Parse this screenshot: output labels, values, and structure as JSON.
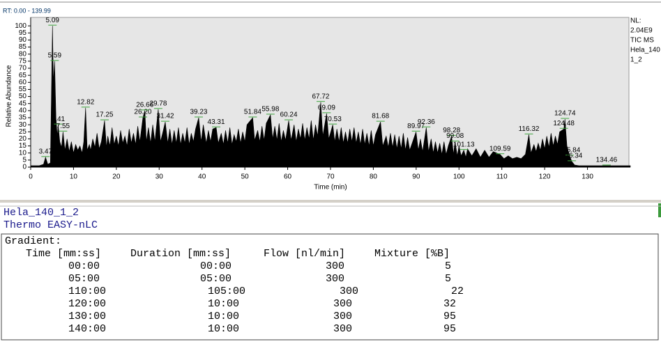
{
  "chart_data": {
    "type": "area",
    "header": "RT: 0.00 - 139.99",
    "xlabel": "Time (min)",
    "ylabel": "Relative Abundance",
    "side_info": [
      "NL:",
      "2.04E9",
      "TIC  MS",
      "Hela_140",
      "1_2"
    ],
    "xlim": [
      0,
      140
    ],
    "ylim": [
      0,
      105
    ],
    "xticks": [
      0,
      10,
      20,
      30,
      40,
      50,
      60,
      70,
      80,
      90,
      100,
      110,
      120,
      130
    ],
    "yticks": [
      0,
      5,
      10,
      15,
      20,
      25,
      30,
      35,
      40,
      45,
      50,
      55,
      60,
      65,
      70,
      75,
      80,
      85,
      90,
      95,
      100
    ],
    "series": [
      {
        "color": "#000000",
        "x": [
          0,
          1,
          2,
          3,
          3.47,
          4,
          4.6,
          5.09,
          5.3,
          5.59,
          5.9,
          6.2,
          6.41,
          6.8,
          7.2,
          7.55,
          8,
          8.5,
          9,
          9.5,
          10,
          10.5,
          11,
          11.5,
          12,
          12.4,
          12.82,
          13.2,
          13.7,
          14,
          14.5,
          15,
          15.5,
          16,
          16.5,
          17.25,
          17.7,
          18,
          18.5,
          19,
          19.5,
          20,
          20.5,
          21,
          21.5,
          22,
          22.5,
          23,
          23.5,
          24,
          24.5,
          25,
          25.5,
          26.2,
          26.66,
          27,
          27.5,
          28,
          28.5,
          29,
          29.78,
          30.3,
          30.8,
          31.42,
          32,
          32.5,
          33,
          33.5,
          34,
          34.5,
          35,
          35.5,
          36,
          36.5,
          37,
          37.5,
          38,
          38.5,
          39.23,
          39.8,
          40.3,
          41,
          41.5,
          42,
          42.5,
          43.31,
          43.8,
          44.5,
          45,
          45.5,
          46,
          46.5,
          47,
          47.5,
          48,
          48.5,
          49,
          49.5,
          50,
          50.5,
          51.84,
          52.3,
          53,
          53.5,
          54,
          54.5,
          55,
          55.98,
          56.5,
          57,
          57.5,
          58,
          58.5,
          59,
          59.5,
          60.24,
          60.8,
          61.5,
          62,
          62.5,
          63,
          63.5,
          64,
          64.5,
          65,
          65.5,
          66,
          66.5,
          67,
          67.72,
          68.2,
          69.09,
          69.6,
          70.53,
          71,
          71.5,
          72,
          72.5,
          73,
          73.5,
          74,
          74.5,
          75,
          75.5,
          76,
          76.5,
          77,
          77.5,
          78,
          78.5,
          79,
          79.5,
          80,
          80.5,
          81.68,
          82.2,
          83,
          83.5,
          84,
          84.5,
          85,
          85.5,
          86,
          86.5,
          87,
          87.5,
          88,
          88.5,
          89.97,
          90.5,
          91,
          91.5,
          92.36,
          92.9,
          93.5,
          94,
          94.5,
          95,
          95.5,
          96,
          96.5,
          97,
          97.5,
          98.28,
          98.7,
          99.08,
          99.6,
          100,
          100.5,
          101.13,
          101.6,
          102,
          103,
          104,
          105,
          106,
          107,
          108,
          109.59,
          110.5,
          111.5,
          112.5,
          113.5,
          114.5,
          115.5,
          116.32,
          116.8,
          117.5,
          118,
          118.5,
          119,
          119.5,
          120,
          120.5,
          121,
          121.5,
          122,
          122.5,
          123,
          123.5,
          124.48,
          124.74,
          125.2,
          125.84,
          126.34,
          127,
          128,
          130,
          132,
          134.46,
          136,
          138,
          140
        ],
        "values": [
          1,
          1,
          1,
          2,
          7,
          2,
          3,
          100,
          60,
          75,
          35,
          22,
          30,
          18,
          14,
          25,
          12,
          20,
          11,
          18,
          10,
          16,
          12,
          15,
          10,
          18,
          42,
          12,
          16,
          12,
          20,
          14,
          24,
          13,
          18,
          33,
          14,
          22,
          15,
          28,
          16,
          22,
          15,
          26,
          17,
          22,
          15,
          27,
          17,
          24,
          16,
          29,
          18,
          35,
          40,
          18,
          28,
          17,
          30,
          18,
          41,
          18,
          24,
          32,
          17,
          27,
          16,
          26,
          17,
          28,
          16,
          24,
          17,
          28,
          16,
          24,
          18,
          27,
          35,
          18,
          30,
          17,
          26,
          18,
          27,
          28,
          17,
          24,
          16,
          26,
          17,
          28,
          16,
          23,
          18,
          27,
          17,
          25,
          18,
          30,
          35,
          19,
          26,
          18,
          29,
          19,
          31,
          37,
          20,
          29,
          19,
          31,
          18,
          26,
          19,
          33,
          19,
          30,
          18,
          27,
          20,
          31,
          19,
          28,
          20,
          33,
          19,
          30,
          22,
          46,
          22,
          38,
          20,
          30,
          18,
          27,
          18,
          28,
          17,
          25,
          17,
          27,
          18,
          28,
          17,
          25,
          16,
          27,
          16,
          24,
          15,
          26,
          15,
          23,
          32,
          15,
          22,
          14,
          24,
          14,
          23,
          13,
          22,
          13,
          24,
          12,
          21,
          12,
          25,
          12,
          20,
          11,
          28,
          11,
          20,
          10,
          18,
          10,
          17,
          9,
          18,
          9,
          15,
          22,
          9,
          18,
          8,
          15,
          8,
          12,
          7,
          13,
          8,
          13,
          7,
          12,
          7,
          11,
          9,
          6,
          8,
          6,
          7,
          6,
          9,
          23,
          10,
          16,
          11,
          17,
          12,
          20,
          13,
          22,
          14,
          24,
          15,
          22,
          16,
          25,
          27,
          34,
          15,
          8,
          4,
          1.5,
          1,
          1,
          1,
          1,
          1,
          1,
          1
        ]
      }
    ],
    "peaks": {
      "x": [
        3.47,
        5.09,
        5.59,
        6.41,
        7.55,
        12.82,
        17.25,
        26.2,
        26.66,
        29.78,
        31.42,
        39.23,
        43.31,
        51.84,
        55.98,
        60.24,
        67.72,
        69.09,
        70.53,
        81.68,
        89.97,
        92.36,
        98.28,
        99.08,
        101.13,
        109.59,
        116.32,
        124.48,
        124.74,
        125.84,
        126.34,
        134.46
      ],
      "values": [
        7,
        100,
        75,
        30,
        25,
        42,
        33,
        35,
        40,
        41,
        32,
        35,
        28,
        35,
        37,
        33,
        46,
        38,
        30,
        32,
        25,
        28,
        22,
        18,
        12,
        9,
        23,
        27,
        34,
        8,
        4,
        1
      ],
      "labels": [
        "3.47",
        "5.09",
        "5.59",
        "6.41",
        "7.55",
        "12.82",
        "17.25",
        "26.20",
        "26.66",
        "29.78",
        "31.42",
        "39.23",
        "43.31",
        "51.84",
        "55.98",
        "60.24",
        "67.72",
        "69.09",
        "70.53",
        "81.68",
        "89.97",
        "92.36",
        "98.28",
        "99.08",
        "101.13",
        "109.59",
        "116.32",
        "124.48",
        "124.74",
        "125.84",
        "126.34",
        "134.46"
      ]
    }
  },
  "method": {
    "name": "Hela_140_1_2",
    "instrument": "Thermo EASY-nLC",
    "section": "Gradient:",
    "table": {
      "headers": [
        "Time [mm:ss]",
        "Duration [mm:ss]",
        "Flow [nl/min]",
        "Mixture [%B]"
      ],
      "rows": [
        [
          "00:00",
          "00:00",
          300,
          5
        ],
        [
          "05:00",
          "05:00",
          300,
          5
        ],
        [
          "110:00",
          "105:00",
          300,
          22
        ],
        [
          "120:00",
          "10:00",
          300,
          32
        ],
        [
          "130:00",
          "10:00",
          300,
          95
        ],
        [
          "140:00",
          "10:00",
          300,
          95
        ]
      ]
    }
  }
}
